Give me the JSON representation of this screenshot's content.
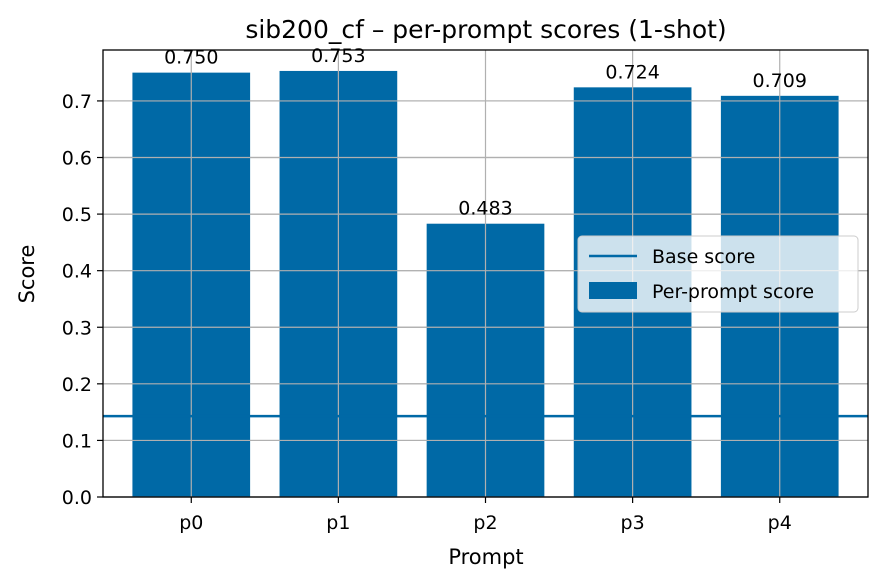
{
  "chart_data": {
    "type": "bar",
    "title": "sib200_cf – per-prompt scores (1-shot)",
    "xlabel": "Prompt",
    "ylabel": "Score",
    "categories": [
      "p0",
      "p1",
      "p2",
      "p3",
      "p4"
    ],
    "values": [
      0.75,
      0.753,
      0.483,
      0.724,
      0.709
    ],
    "data_labels": [
      "0.750",
      "0.753",
      "0.483",
      "0.724",
      "0.709"
    ],
    "base_score": 0.143,
    "ylim": [
      0,
      0.79
    ],
    "yticks": [
      0.0,
      0.1,
      0.2,
      0.3,
      0.4,
      0.5,
      0.6,
      0.7
    ],
    "ytick_labels": [
      "0.0",
      "0.1",
      "0.2",
      "0.3",
      "0.4",
      "0.5",
      "0.6",
      "0.7"
    ],
    "grid": true,
    "legend": {
      "placement": "center-right",
      "entries": [
        "Base score",
        "Per-prompt score"
      ]
    },
    "colors": {
      "bar": "#0069a6",
      "base_line": "#0069a6",
      "grid": "#b0b0b0"
    }
  }
}
